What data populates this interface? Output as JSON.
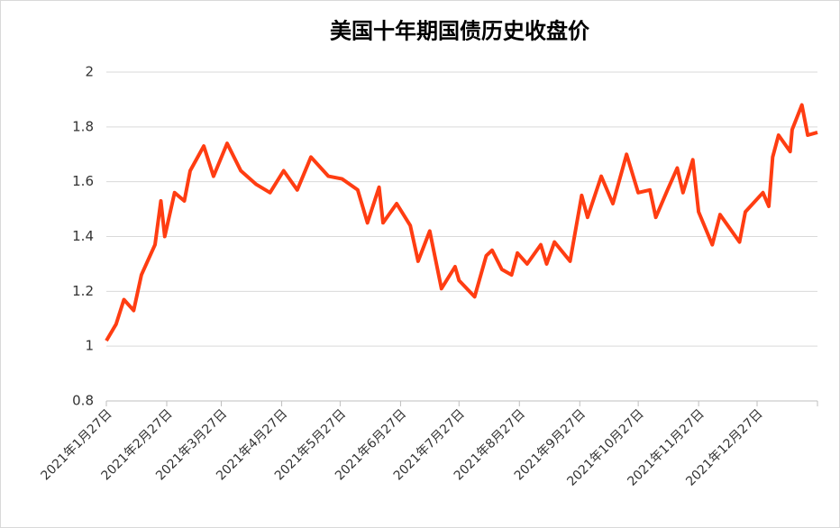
{
  "chart_data": {
    "type": "line",
    "title": "美国十年期国债历史收盘价",
    "color": "#ff3d12",
    "grid": true,
    "x": [
      "2021-01-27",
      "2021-02-01",
      "2021-02-05",
      "2021-02-10",
      "2021-02-14",
      "2021-02-21",
      "2021-02-24",
      "2021-02-26",
      "2021-03-03",
      "2021-03-08",
      "2021-03-11",
      "2021-03-18",
      "2021-03-23",
      "2021-03-30",
      "2021-04-06",
      "2021-04-14",
      "2021-04-21",
      "2021-04-28",
      "2021-05-05",
      "2021-05-12",
      "2021-05-21",
      "2021-05-28",
      "2021-06-05",
      "2021-06-10",
      "2021-06-16",
      "2021-06-18",
      "2021-06-25",
      "2021-07-02",
      "2021-07-06",
      "2021-07-12",
      "2021-07-18",
      "2021-07-25",
      "2021-07-27",
      "2021-08-04",
      "2021-08-10",
      "2021-08-13",
      "2021-08-18",
      "2021-08-23",
      "2021-08-26",
      "2021-08-31",
      "2021-09-07",
      "2021-09-10",
      "2021-09-14",
      "2021-09-22",
      "2021-09-28",
      "2021-10-01",
      "2021-10-08",
      "2021-10-14",
      "2021-10-21",
      "2021-10-27",
      "2021-11-02",
      "2021-11-05",
      "2021-11-11",
      "2021-11-16",
      "2021-11-19",
      "2021-11-24",
      "2021-11-27",
      "2021-12-04",
      "2021-12-08",
      "2021-12-18",
      "2021-12-21",
      "2021-12-30",
      "2022-01-02",
      "2022-01-04",
      "2022-01-07",
      "2022-01-13",
      "2022-01-14",
      "2022-01-19",
      "2022-01-22",
      "2022-01-27"
    ],
    "values": [
      1.02,
      1.08,
      1.17,
      1.13,
      1.26,
      1.37,
      1.53,
      1.4,
      1.56,
      1.53,
      1.64,
      1.73,
      1.62,
      1.74,
      1.64,
      1.59,
      1.56,
      1.64,
      1.57,
      1.69,
      1.62,
      1.61,
      1.57,
      1.45,
      1.58,
      1.45,
      1.52,
      1.44,
      1.31,
      1.42,
      1.21,
      1.29,
      1.24,
      1.18,
      1.33,
      1.35,
      1.28,
      1.26,
      1.34,
      1.3,
      1.37,
      1.3,
      1.38,
      1.31,
      1.55,
      1.47,
      1.62,
      1.52,
      1.7,
      1.56,
      1.57,
      1.47,
      1.57,
      1.65,
      1.56,
      1.68,
      1.49,
      1.37,
      1.48,
      1.38,
      1.49,
      1.56,
      1.51,
      1.69,
      1.77,
      1.71,
      1.79,
      1.88,
      1.77,
      1.78
    ],
    "xlim": [
      "2021-01-27",
      "2022-01-27"
    ],
    "xticks": [
      {
        "value": "2021-01-27",
        "label": "2021年1月27日"
      },
      {
        "value": "2021-02-27",
        "label": "2021年2月27日"
      },
      {
        "value": "2021-03-27",
        "label": "2021年3月27日"
      },
      {
        "value": "2021-04-27",
        "label": "2021年4月27日"
      },
      {
        "value": "2021-05-27",
        "label": "2021年5月27日"
      },
      {
        "value": "2021-06-27",
        "label": "2021年6月27日"
      },
      {
        "value": "2021-07-27",
        "label": "2021年7月27日"
      },
      {
        "value": "2021-08-27",
        "label": "2021年8月27日"
      },
      {
        "value": "2021-09-27",
        "label": "2021年9月27日"
      },
      {
        "value": "2021-10-27",
        "label": "2021年10月27日"
      },
      {
        "value": "2021-11-27",
        "label": "2021年11月27日"
      },
      {
        "value": "2021-12-27",
        "label": "2021年12月27日"
      }
    ],
    "ylim": [
      0.8,
      2
    ],
    "yticks": [
      0.8,
      1,
      1.2,
      1.4,
      1.6,
      1.8,
      2
    ]
  }
}
